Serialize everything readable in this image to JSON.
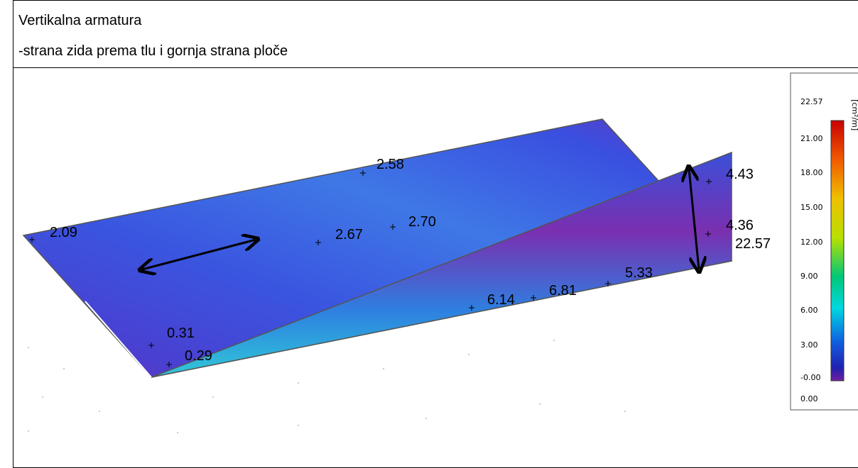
{
  "header": {
    "lines": [
      "Vertikalna armatura",
      "-strana zida prema tlu i gornja strana ploče"
    ]
  },
  "figure": {
    "labels": [
      "2.58",
      "2.09",
      "2.67",
      "2.70",
      "0.31",
      "0.29",
      "6.14",
      "6.81",
      "5.33",
      "4.43",
      "4.36",
      "22.57"
    ]
  },
  "legend": {
    "title": "[cm²/m]",
    "labels": [
      "22.57",
      "21.00",
      "18.00",
      "15.00",
      "12.00",
      "9.00",
      "6.00",
      "3.00",
      "-0.00",
      "0.00"
    ]
  }
}
